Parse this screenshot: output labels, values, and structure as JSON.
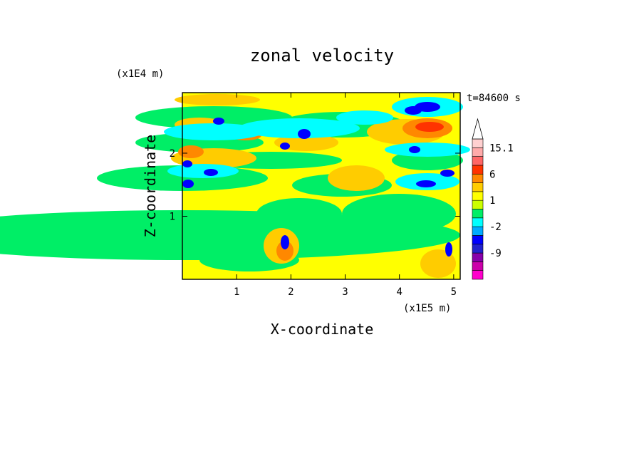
{
  "chart_data": {
    "type": "heatmap",
    "title": "zonal velocity",
    "xlabel": "X-coordinate",
    "ylabel": "Z-coordinate",
    "x_unit": "(x1E5 m)",
    "y_unit": "(x1E4 m)",
    "time_label": "t=84600 s",
    "xlim": [
      0,
      5.12
    ],
    "ylim": [
      0,
      2.96
    ],
    "x_ticks": [
      "1",
      "2",
      "3",
      "4",
      "5"
    ],
    "x_tick_values": [
      1,
      2,
      3,
      4,
      5
    ],
    "y_ticks": [
      "1",
      "2"
    ],
    "y_tick_values": [
      1,
      2
    ],
    "colorbar": {
      "levels": [
        -15,
        -12,
        -9,
        -6,
        -3,
        -2,
        -1,
        0,
        1,
        2,
        3,
        6,
        9,
        12,
        15.1
      ],
      "labels": [
        "15.1",
        "6",
        "1",
        "-2",
        "-9"
      ],
      "label_values": [
        15.1,
        6,
        1,
        -2,
        -9
      ],
      "extend": "max",
      "colors": [
        "#ff00cc",
        "#cc00aa",
        "#8800aa",
        "#2222cc",
        "#0000ff",
        "#00aaff",
        "#00ffff",
        "#00ee66",
        "#ccff00",
        "#ffff00",
        "#ffcc00",
        "#ff8800",
        "#ff3300",
        "#ff6666",
        "#ffaaaa",
        "#ffd0d0"
      ]
    },
    "grid": false,
    "legend": "colorbar-right"
  }
}
